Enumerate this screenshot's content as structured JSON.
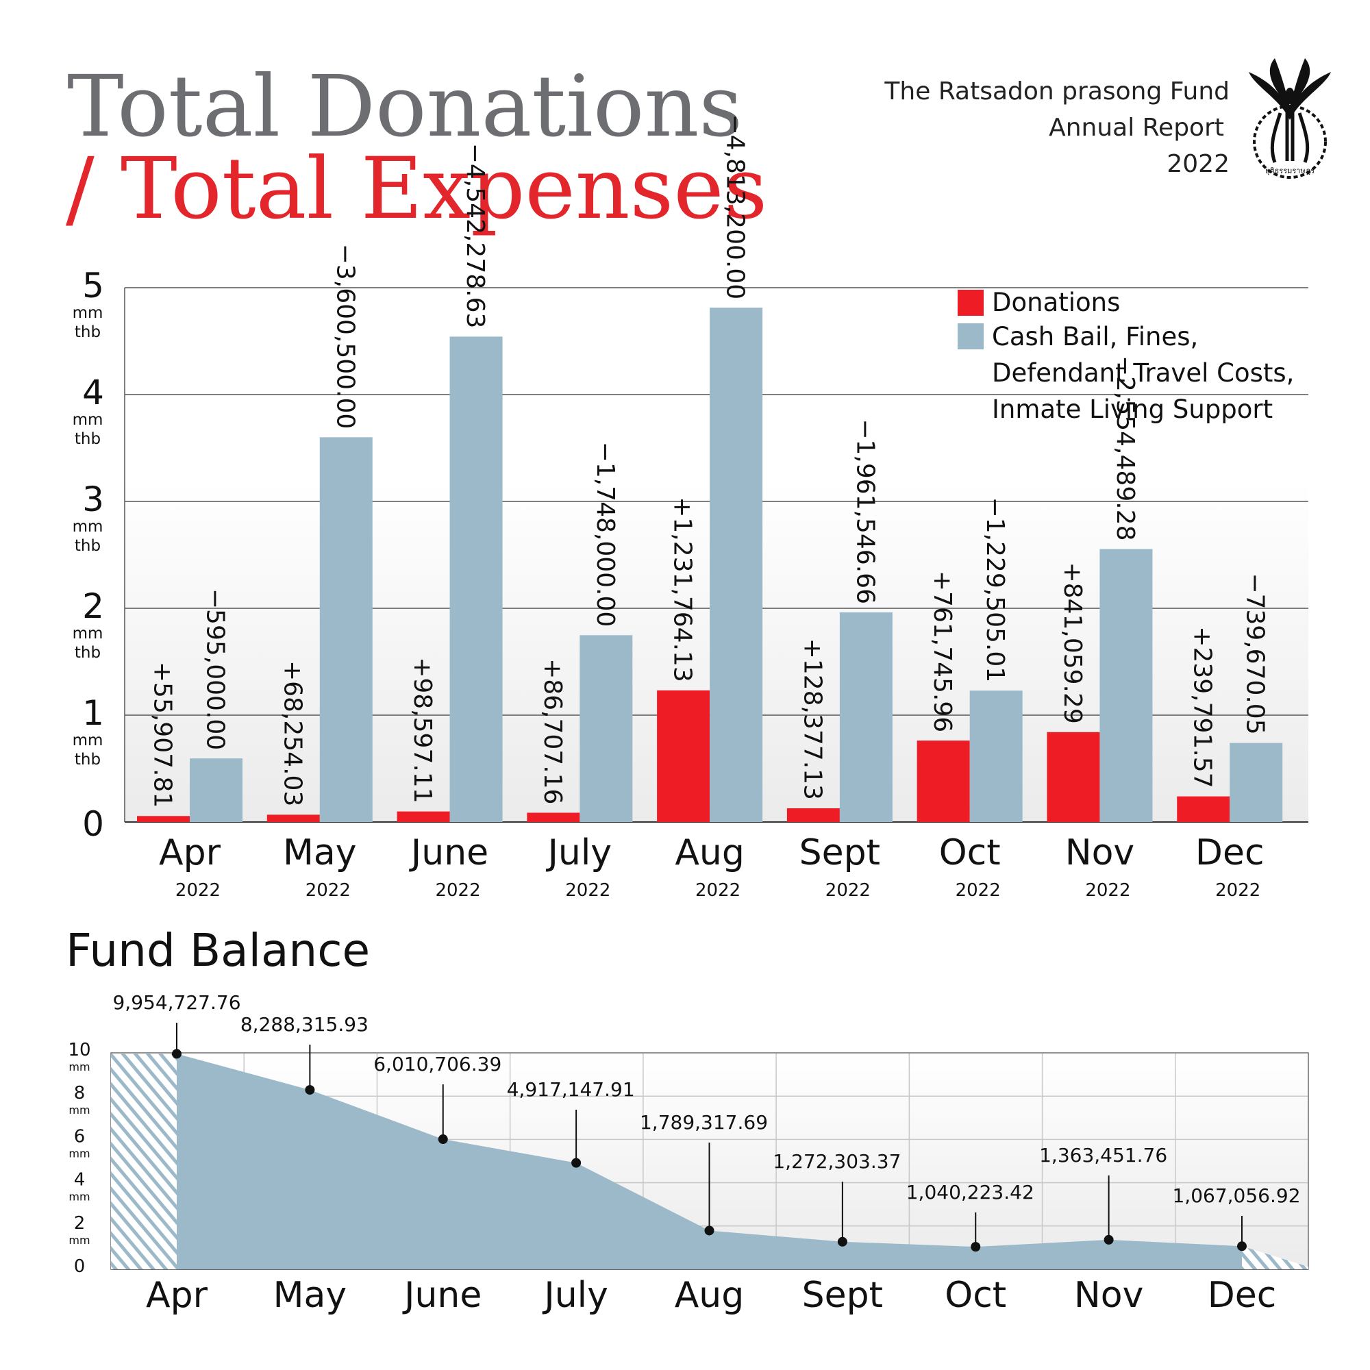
{
  "header": {
    "title_line1": "Total Donations",
    "title_line2_slash": "/",
    "title_line2": "Total Expenses",
    "org_line1": "The Ratsadon prasong Fund",
    "org_line2": "Annual Report",
    "org_line3": "2022",
    "logo_text": "ยุติธรรมราษฎร"
  },
  "colors": {
    "donations": "#ee1c25",
    "expenses": "#9cb9c9",
    "title_gray": "#6d6e71",
    "title_red": "#e3262c",
    "text": "#111111"
  },
  "chart_data": [
    {
      "type": "bar",
      "categories": [
        "Apr",
        "May",
        "June",
        "July",
        "Aug",
        "Sept",
        "Oct",
        "Nov",
        "Dec"
      ],
      "category_year": "2022",
      "series": [
        {
          "name": "Donations",
          "values": [
            55907.81,
            68254.03,
            98597.11,
            86707.16,
            1231764.13,
            128377.13,
            761745.96,
            841059.29,
            239791.57
          ],
          "labels": [
            "+55,907.81",
            "+68,254.03",
            "+98,597.11",
            "+86,707.16",
            "+1,231,764.13",
            "+128,377.13",
            "+761,745.96",
            "+841,059.29",
            "+239,791.57"
          ]
        },
        {
          "name": "Cash Bail, Fines, Defendant Travel Costs, Inmate Living Support",
          "legend_lines": [
            "Cash Bail, Fines,",
            "Defendant Travel Costs,",
            "Inmate Living Support"
          ],
          "values": [
            595000.0,
            3600500.0,
            4542278.63,
            1748000.0,
            4813200.0,
            1961546.66,
            1229505.01,
            2554489.28,
            739670.05
          ],
          "labels": [
            "−595,000.00",
            "−3,600,500.00",
            "−4,542,278.63",
            "−1,748,000.00",
            "−4,813,200.00",
            "−1,961,546.66",
            "−1,229,505.01",
            "−2,554,489.28",
            "−739,670.05"
          ]
        }
      ],
      "y_ticks": [
        "0",
        "1",
        "2",
        "3",
        "4",
        "5"
      ],
      "y_unit_lines": [
        "mm",
        "thb"
      ],
      "ylim": [
        0,
        5000000
      ],
      "legend_position": "top-right",
      "grid": true
    },
    {
      "type": "area",
      "title": "Fund Balance",
      "categories": [
        "Apr",
        "May",
        "June",
        "July",
        "Aug",
        "Sept",
        "Oct",
        "Nov",
        "Dec"
      ],
      "values": [
        9954727.76,
        8288315.93,
        6010706.39,
        4917147.91,
        1789317.69,
        1272303.37,
        1040223.42,
        1363451.76,
        1067056.92
      ],
      "labels": [
        "9,954,727.76",
        "8,288,315.93",
        "6,010,706.39",
        "4,917,147.91",
        "1,789,317.69",
        "1,272,303.37",
        "1,040,223.42",
        "1,363,451.76",
        "1,067,056.92"
      ],
      "y_ticks": [
        "0",
        "2",
        "4",
        "6",
        "8",
        "10"
      ],
      "y_unit": "mm",
      "ylim": [
        0,
        10000000
      ],
      "grid": true
    }
  ]
}
